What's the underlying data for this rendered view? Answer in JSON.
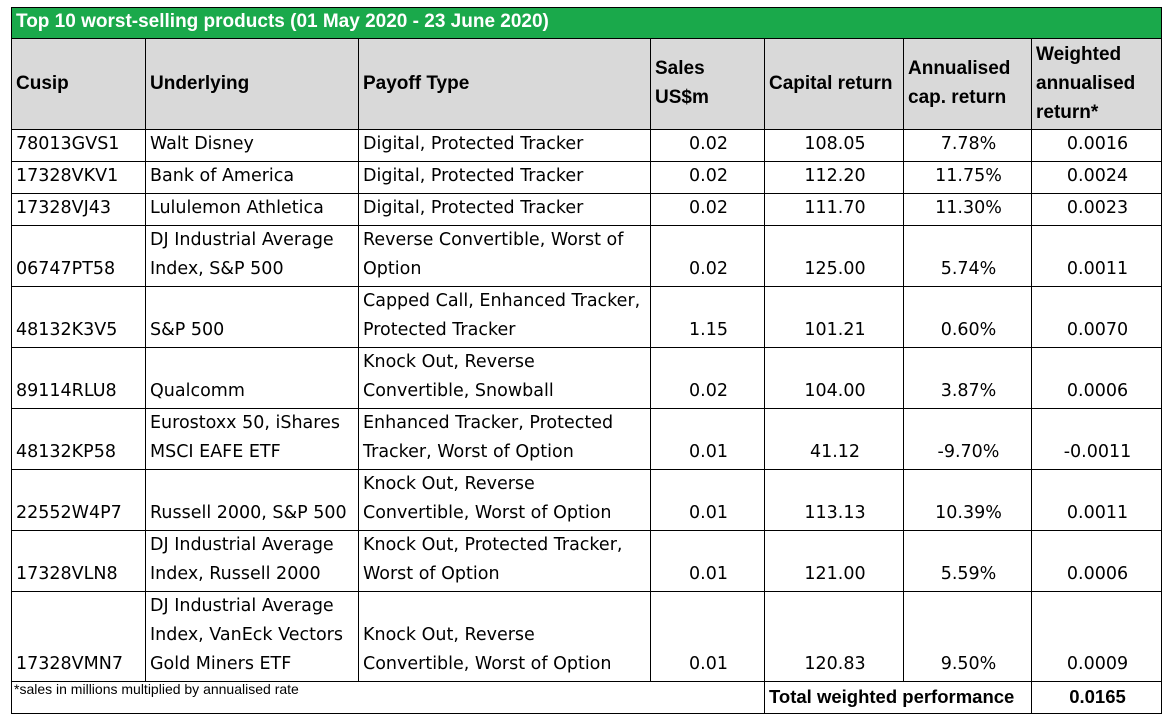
{
  "title": "Top 10 worst-selling products (01 May 2020 - 23 June 2020)",
  "headers": {
    "cusip": "Cusip",
    "underlying": "Underlying",
    "payoff": "Payoff Type",
    "sales": "Sales US$m",
    "capital": "Capital return",
    "annualised": "Annualised\ncap. return",
    "weighted": "Weighted\nannualised\nreturn*"
  },
  "rows": [
    {
      "cusip": "78013GVS1",
      "underlying": "Walt Disney",
      "payoff": "Digital, Protected Tracker",
      "sales": "0.02",
      "capital": "108.05",
      "annualised": "7.78%",
      "weighted": "0.0016"
    },
    {
      "cusip": "17328VKV1",
      "underlying": "Bank of America",
      "payoff": "Digital, Protected Tracker",
      "sales": "0.02",
      "capital": "112.20",
      "annualised": "11.75%",
      "weighted": "0.0024"
    },
    {
      "cusip": "17328VJ43",
      "underlying": "Lululemon Athletica",
      "payoff": "Digital, Protected Tracker",
      "sales": "0.02",
      "capital": "111.70",
      "annualised": "11.30%",
      "weighted": "0.0023"
    },
    {
      "cusip": "06747PT58",
      "underlying": "DJ Industrial Average\nIndex, S&P 500",
      "payoff": "Reverse Convertible, Worst of\nOption",
      "sales": "0.02",
      "capital": "125.00",
      "annualised": "5.74%",
      "weighted": "0.0011"
    },
    {
      "cusip": "48132K3V5",
      "underlying": "S&P 500",
      "payoff": "Capped Call, Enhanced Tracker,\nProtected Tracker",
      "sales": "1.15",
      "capital": "101.21",
      "annualised": "0.60%",
      "weighted": "0.0070"
    },
    {
      "cusip": "89114RLU8",
      "underlying": "Qualcomm",
      "payoff": "Knock Out, Reverse\nConvertible, Snowball",
      "sales": "0.02",
      "capital": "104.00",
      "annualised": "3.87%",
      "weighted": "0.0006"
    },
    {
      "cusip": "48132KP58",
      "underlying": "Eurostoxx 50, iShares\nMSCI EAFE ETF",
      "payoff": "Enhanced Tracker, Protected\nTracker, Worst of Option",
      "sales": "0.01",
      "capital": "41.12",
      "annualised": "-9.70%",
      "weighted": "-0.0011"
    },
    {
      "cusip": "22552W4P7",
      "underlying": "Russell 2000, S&P 500",
      "payoff": "Knock Out, Reverse\nConvertible, Worst of Option",
      "sales": "0.01",
      "capital": "113.13",
      "annualised": "10.39%",
      "weighted": "0.0011"
    },
    {
      "cusip": "17328VLN8",
      "underlying": "DJ Industrial Average\nIndex, Russell 2000",
      "payoff": "Knock Out, Protected Tracker,\nWorst of Option",
      "sales": "0.01",
      "capital": "121.00",
      "annualised": "5.59%",
      "weighted": "0.0006"
    },
    {
      "cusip": "17328VMN7",
      "underlying": "DJ Industrial Average\nIndex, VanEck Vectors\nGold Miners ETF",
      "payoff": "Knock Out, Reverse\nConvertible, Worst of Option",
      "sales": "0.01",
      "capital": "120.83",
      "annualised": "9.50%",
      "weighted": "0.0009"
    }
  ],
  "total": {
    "label": "Total weighted performance",
    "value": "0.0165"
  },
  "footnote": "*sales in millions multiplied by annualised rate",
  "colors": {
    "title_bg": "#1aa94b",
    "header_bg": "#d9d9d9"
  }
}
